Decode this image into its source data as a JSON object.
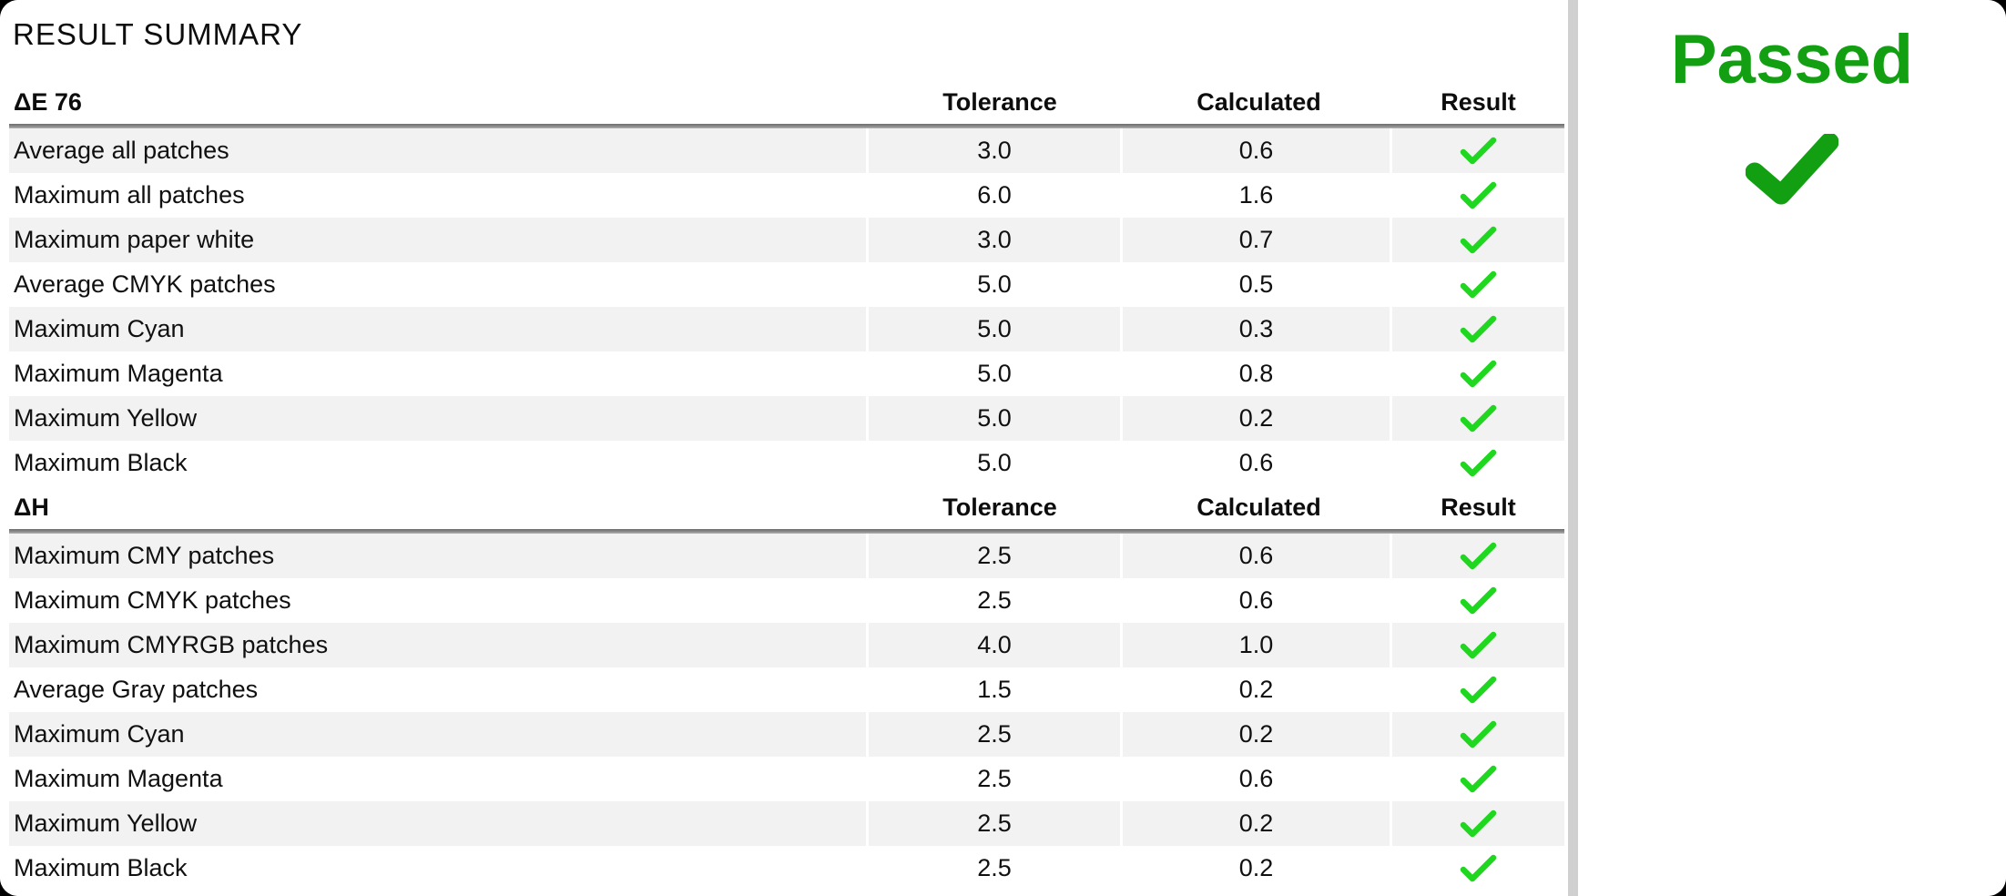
{
  "panel_title": "RESULT SUMMARY",
  "columns": [
    "Tolerance",
    "Calculated",
    "Result"
  ],
  "sections": [
    {
      "title": "ΔE 76",
      "rows": [
        {
          "label": "Average all patches",
          "tolerance": "3.0",
          "calculated": "0.6",
          "passed": true
        },
        {
          "label": "Maximum all patches",
          "tolerance": "6.0",
          "calculated": "1.6",
          "passed": true
        },
        {
          "label": "Maximum paper white",
          "tolerance": "3.0",
          "calculated": "0.7",
          "passed": true
        },
        {
          "label": "Average CMYK patches",
          "tolerance": "5.0",
          "calculated": "0.5",
          "passed": true
        },
        {
          "label": "Maximum Cyan",
          "tolerance": "5.0",
          "calculated": "0.3",
          "passed": true
        },
        {
          "label": "Maximum Magenta",
          "tolerance": "5.0",
          "calculated": "0.8",
          "passed": true
        },
        {
          "label": "Maximum Yellow",
          "tolerance": "5.0",
          "calculated": "0.2",
          "passed": true
        },
        {
          "label": "Maximum Black",
          "tolerance": "5.0",
          "calculated": "0.6",
          "passed": true
        }
      ]
    },
    {
      "title": "ΔH",
      "rows": [
        {
          "label": "Maximum CMY patches",
          "tolerance": "2.5",
          "calculated": "0.6",
          "passed": true
        },
        {
          "label": "Maximum CMYK patches",
          "tolerance": "2.5",
          "calculated": "0.6",
          "passed": true
        },
        {
          "label": "Maximum CMYRGB patches",
          "tolerance": "4.0",
          "calculated": "1.0",
          "passed": true
        },
        {
          "label": "Average Gray patches",
          "tolerance": "1.5",
          "calculated": "0.2",
          "passed": true
        },
        {
          "label": "Maximum Cyan",
          "tolerance": "2.5",
          "calculated": "0.2",
          "passed": true
        },
        {
          "label": "Maximum Magenta",
          "tolerance": "2.5",
          "calculated": "0.6",
          "passed": true
        },
        {
          "label": "Maximum Yellow",
          "tolerance": "2.5",
          "calculated": "0.2",
          "passed": true
        },
        {
          "label": "Maximum Black",
          "tolerance": "2.5",
          "calculated": "0.2",
          "passed": true
        }
      ]
    }
  ],
  "status": {
    "label": "Passed"
  },
  "colors": {
    "row_check_green": "#1ed71e",
    "status_green": "#12a012",
    "row_alt_gray": "#f2f2f2",
    "divider_gray": "#d0d0d0",
    "header_rule_gray": "#8a8a8a"
  }
}
